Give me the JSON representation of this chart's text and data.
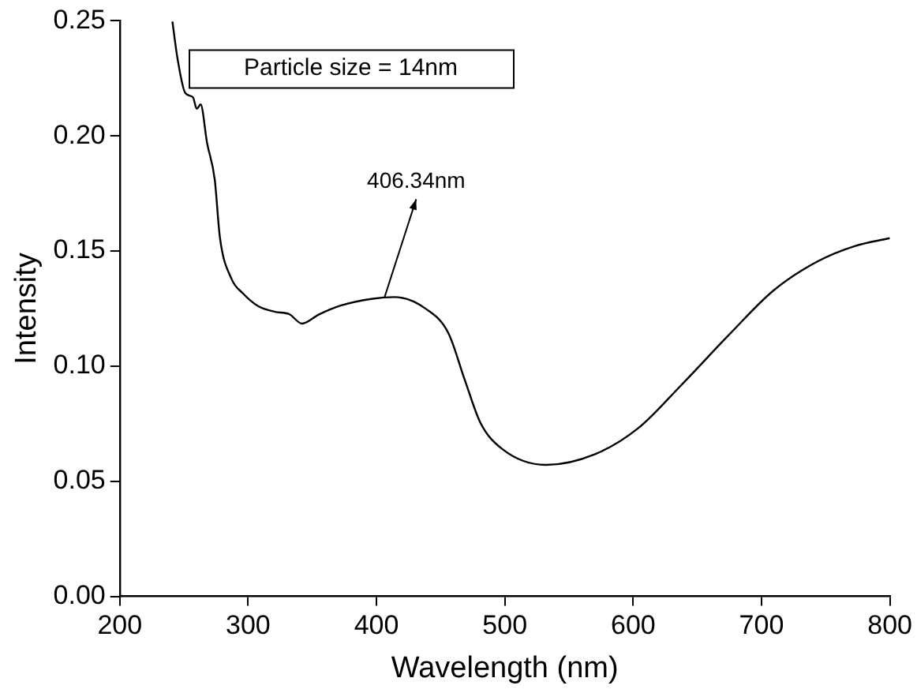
{
  "chart_data": {
    "type": "line",
    "xlabel": "Wavelength (nm)",
    "ylabel": "Intensity",
    "annotations": [
      "Particle size = 14nm",
      {
        "text": "406.34nm",
        "x": 406.34,
        "y": 0.13
      }
    ],
    "series": [
      {
        "color": "#000000",
        "x": [
          241,
          245,
          251,
          257,
          260,
          263,
          268,
          274,
          278,
          287,
          296,
          308,
          321,
          332,
          342,
          355,
          372,
          397,
          414,
          439,
          456,
          469,
          481,
          498,
          532,
          570,
          604,
          637,
          676,
          709,
          743,
          773,
          800
        ],
        "values": [
          0.2497,
          0.2336,
          0.2187,
          0.2168,
          0.2118,
          0.2137,
          0.197,
          0.181,
          0.156,
          0.138,
          0.1316,
          0.126,
          0.1236,
          0.1226,
          0.1185,
          0.1224,
          0.1263,
          0.1293,
          0.13,
          0.1247,
          0.1144,
          0.0937,
          0.0754,
          0.064,
          0.0571,
          0.0617,
          0.0731,
          0.0915,
          0.1144,
          0.1327,
          0.1453,
          0.1522,
          0.1556
        ]
      }
    ],
    "xlim": [
      200,
      800
    ],
    "xticks": [
      200,
      300,
      400,
      500,
      600,
      700,
      800
    ],
    "ylim": [
      0,
      0.25
    ],
    "yticks": [
      {
        "value": 0,
        "label": "0.00"
      },
      {
        "value": 0.05,
        "label": "0.05"
      },
      {
        "value": 0.1,
        "label": "0.10"
      },
      {
        "value": 0.15,
        "label": "0.15"
      },
      {
        "value": 0.2,
        "label": "0.20"
      },
      {
        "value": 0.25,
        "label": "0.25"
      }
    ],
    "grid": false,
    "legend": false,
    "marker": "none",
    "line_style": "solid"
  }
}
